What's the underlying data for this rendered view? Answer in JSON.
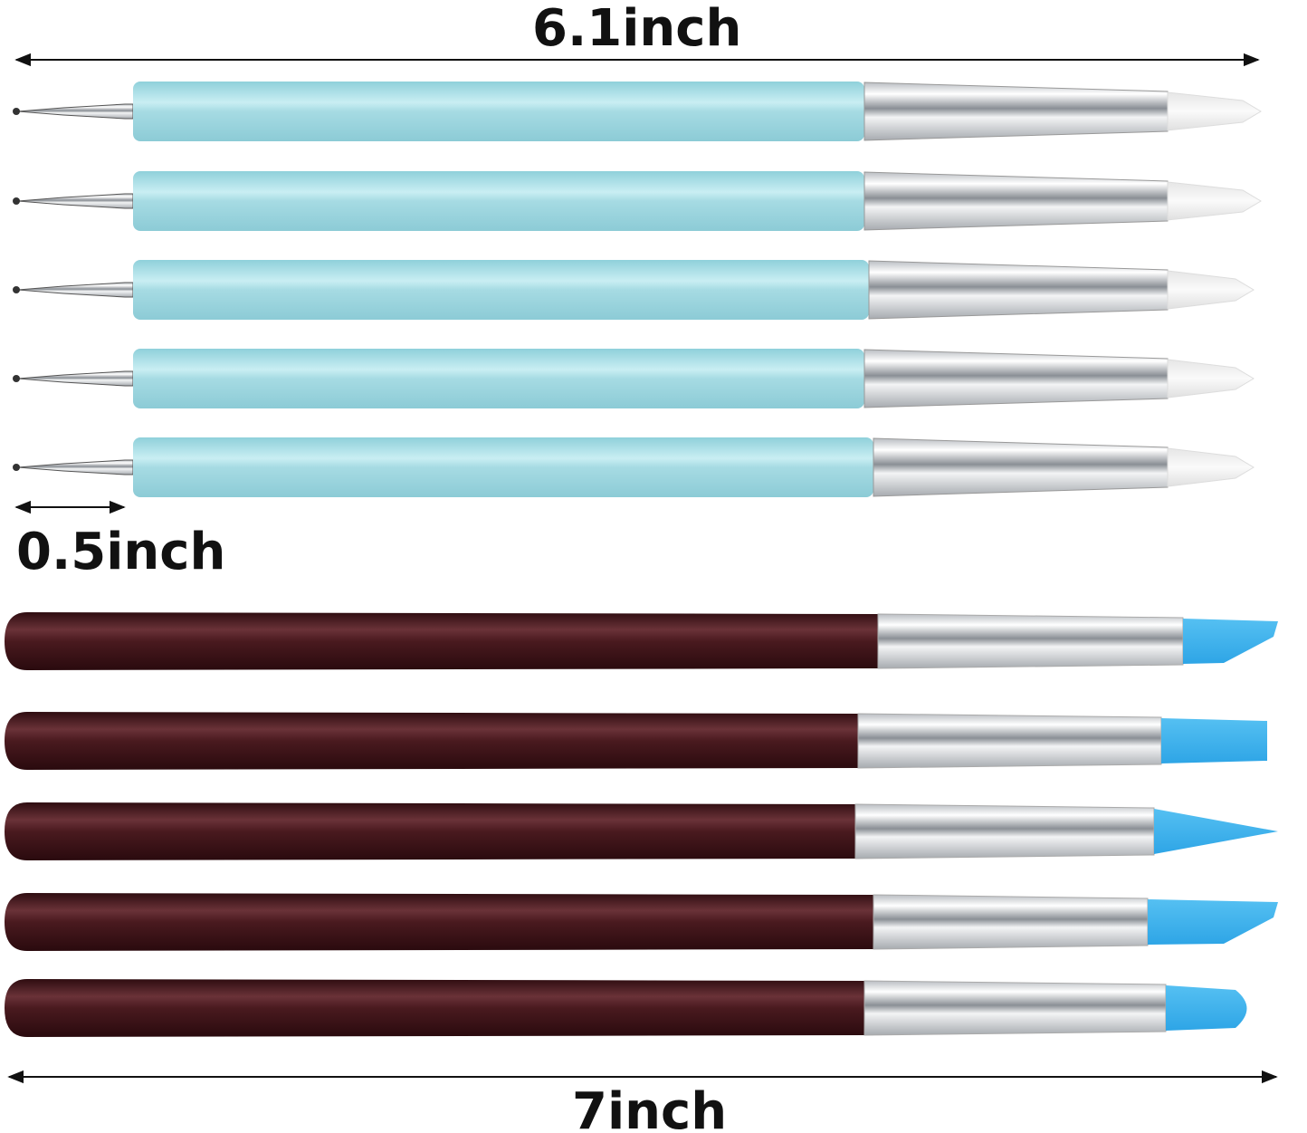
{
  "labels": {
    "top_length": "6.1inch",
    "tip_length": "0.5inch",
    "bottom_length": "7inch"
  },
  "colors": {
    "blue_handle": "#a6dbe3",
    "brown_handle": "#4a1a1f",
    "ferrule": "#d9dcdf",
    "white_tip": "#f4f4f4",
    "blue_tip": "#3fb2ec",
    "arrow": "#111111"
  },
  "tools": {
    "dotting_pens": 5,
    "clay_shapers": 5
  }
}
